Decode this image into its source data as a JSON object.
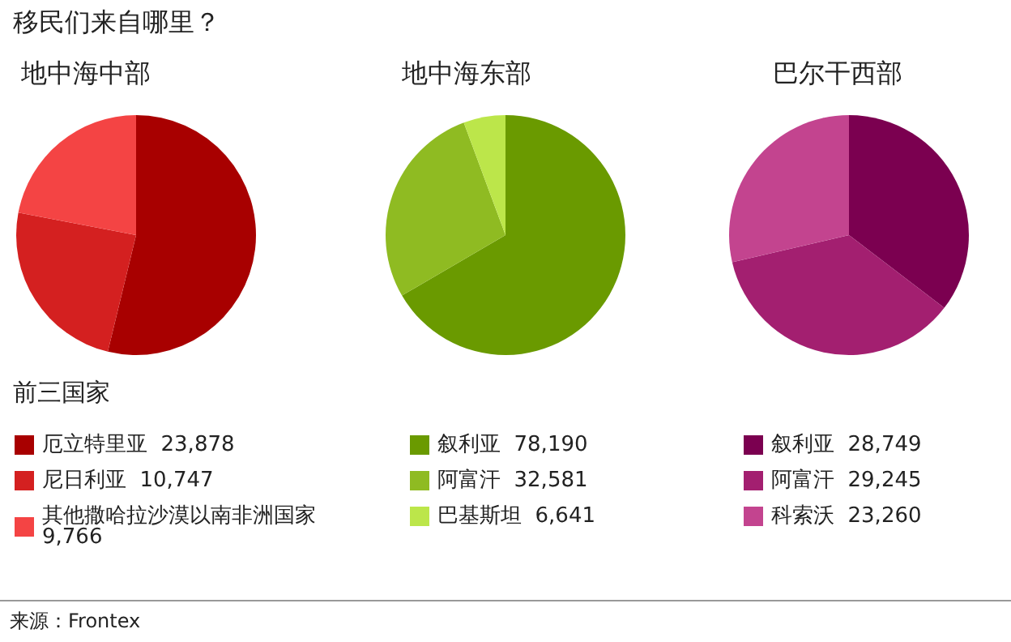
{
  "chart_data": [
    {
      "type": "pie",
      "title": "移民们来自哪里？",
      "subtitle": "地中海中部",
      "legend_title": "前三国家",
      "annotations": [
        "来源：Frontex"
      ],
      "categories": [
        "厄立特里亚",
        "尼日利亚",
        "其他撒哈拉沙漠以南非洲国家"
      ],
      "values": [
        23878,
        10747,
        9766
      ],
      "colors": [
        "#a80000",
        "#d42020",
        "#f44444"
      ],
      "legend": "bottom",
      "value_labels": [
        "23,878",
        "10,747",
        "9,766"
      ]
    },
    {
      "type": "pie",
      "subtitle": "地中海东部",
      "categories": [
        "叙利亚",
        "阿富汗",
        "巴基斯坦"
      ],
      "values": [
        78190,
        32581,
        6641
      ],
      "colors": [
        "#6a9a00",
        "#8fbb22",
        "#bce64a"
      ],
      "legend": "bottom",
      "value_labels": [
        "78,190",
        "32,581",
        "6,641"
      ]
    },
    {
      "type": "pie",
      "subtitle": "巴尔干西部",
      "categories": [
        "叙利亚",
        "阿富汗",
        "科索沃"
      ],
      "values": [
        28749,
        29245,
        23260
      ],
      "colors": [
        "#7b0050",
        "#a31f70",
        "#c3448f"
      ],
      "legend": "bottom",
      "value_labels": [
        "28,749",
        "29,245",
        "23,260"
      ]
    }
  ]
}
